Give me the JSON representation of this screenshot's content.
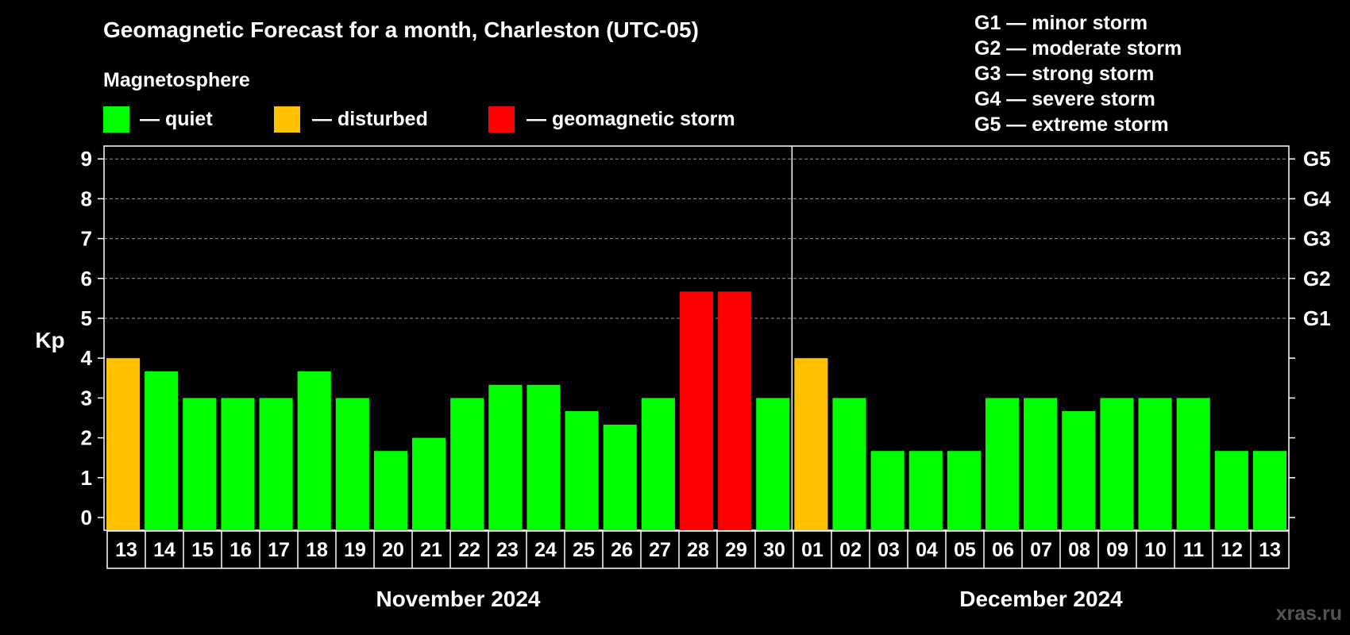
{
  "header": {
    "title": "Geomagnetic Forecast for a month, Charleston (UTC-05)",
    "subtitle": "Magnetosphere"
  },
  "legend": {
    "items": [
      {
        "label": "— quiet",
        "color": "#00ff00"
      },
      {
        "label": "— disturbed",
        "color": "#ffc000"
      },
      {
        "label": "— geomagnetic storm",
        "color": "#ff0000"
      }
    ]
  },
  "storm_scale": [
    "G1 — minor storm",
    "G2 — moderate storm",
    "G3 — strong storm",
    "G4 — severe storm",
    "G5 — extreme storm"
  ],
  "watermark": "xras.ru",
  "chart_data": {
    "type": "bar",
    "title": "Geomagnetic Forecast for a month, Charleston (UTC-05)",
    "ylabel": "Kp",
    "ylim": [
      0,
      9
    ],
    "yticks": [
      "0",
      "1",
      "2",
      "3",
      "4",
      "5",
      "6",
      "7",
      "8",
      "9"
    ],
    "right_ticks": [
      {
        "value": 5,
        "label": "G1"
      },
      {
        "value": 6,
        "label": "G2"
      },
      {
        "value": 7,
        "label": "G3"
      },
      {
        "value": 8,
        "label": "G4"
      },
      {
        "value": 9,
        "label": "G5"
      }
    ],
    "grid_dashed_from": 5,
    "months": [
      {
        "label": "November 2024",
        "days": [
          "13",
          "14",
          "15",
          "16",
          "17",
          "18",
          "19",
          "20",
          "21",
          "22",
          "23",
          "24",
          "25",
          "26",
          "27",
          "28",
          "29",
          "30"
        ]
      },
      {
        "label": "December 2024",
        "days": [
          "01",
          "02",
          "03",
          "04",
          "05",
          "06",
          "07",
          "08",
          "09",
          "10",
          "11",
          "12",
          "13"
        ]
      }
    ],
    "values": [
      4,
      3.67,
      3,
      3,
      3,
      3.67,
      3,
      1.67,
      2,
      3,
      3.33,
      3.33,
      2.67,
      2.33,
      3,
      5.67,
      5.67,
      3,
      4,
      3,
      1.67,
      1.67,
      1.67,
      3,
      3,
      2.67,
      3,
      3,
      3,
      1.67,
      1.67
    ],
    "levels": [
      "disturbed",
      "quiet",
      "quiet",
      "quiet",
      "quiet",
      "quiet",
      "quiet",
      "quiet",
      "quiet",
      "quiet",
      "quiet",
      "quiet",
      "quiet",
      "quiet",
      "quiet",
      "storm",
      "storm",
      "quiet",
      "disturbed",
      "quiet",
      "quiet",
      "quiet",
      "quiet",
      "quiet",
      "quiet",
      "quiet",
      "quiet",
      "quiet",
      "quiet",
      "quiet",
      "quiet"
    ],
    "colors": {
      "quiet": "#00ff00",
      "disturbed": "#ffc000",
      "storm": "#ff0000"
    }
  }
}
